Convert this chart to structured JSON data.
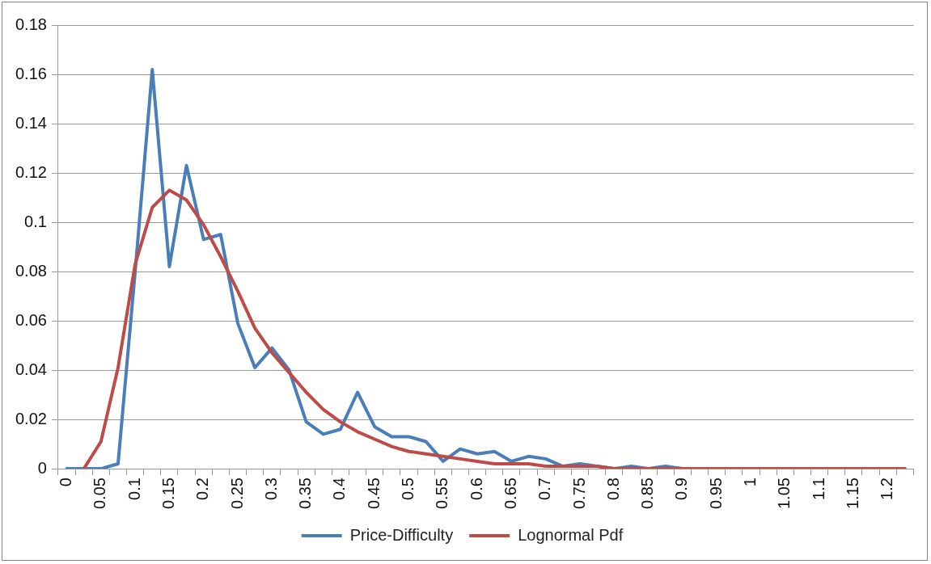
{
  "chart_data": {
    "type": "line",
    "categories": [
      "0",
      null,
      "0.05",
      null,
      "0.1",
      null,
      "0.15",
      null,
      "0.2",
      null,
      "0.25",
      null,
      "0.3",
      null,
      "0.35",
      null,
      "0.4",
      null,
      "0.45",
      null,
      "0.5",
      null,
      "0.55",
      null,
      "0.6",
      null,
      "0.65",
      null,
      "0.7",
      null,
      "0.75",
      null,
      "0.8",
      null,
      "0.85",
      null,
      "0.9",
      null,
      "0.95",
      null,
      "1",
      null,
      "1.05",
      null,
      "1.1",
      null,
      "1.15",
      null,
      "1.2",
      null
    ],
    "series": [
      {
        "name": "Price-Difficulty",
        "color": "#4a7ebb",
        "values": [
          0,
          0,
          0,
          0.002,
          0.08,
          0.162,
          0.082,
          0.123,
          0.093,
          0.095,
          0.059,
          0.041,
          0.049,
          0.04,
          0.019,
          0.014,
          0.016,
          0.031,
          0.017,
          0.013,
          0.013,
          0.011,
          0.003,
          0.008,
          0.006,
          0.007,
          0.003,
          0.005,
          0.004,
          0.001,
          0.002,
          0.001,
          0,
          0.001,
          0,
          0.001,
          0,
          null,
          null,
          null,
          null,
          null,
          null,
          null,
          null,
          null,
          null,
          null,
          null,
          null
        ]
      },
      {
        "name": "Lognormal Pdf",
        "color": "#be4b48",
        "values": [
          null,
          0,
          0.011,
          0.041,
          0.083,
          0.106,
          0.113,
          0.109,
          0.099,
          0.086,
          0.072,
          0.057,
          0.047,
          0.039,
          0.031,
          0.024,
          0.019,
          0.015,
          0.012,
          0.009,
          0.007,
          0.006,
          0.005,
          0.004,
          0.003,
          0.002,
          0.002,
          0.002,
          0.001,
          0.001,
          0.001,
          0.001,
          0,
          0,
          0,
          0,
          0,
          0,
          0,
          0,
          0,
          0,
          0,
          0,
          0,
          0,
          0,
          0,
          0,
          0
        ]
      }
    ],
    "ylim": [
      0,
      0.18
    ],
    "yticks": [
      0,
      0.02,
      0.04,
      0.06,
      0.08,
      0.1,
      0.12,
      0.14,
      0.16,
      0.18
    ],
    "grid": "y",
    "legend": "bottom",
    "marker": "none",
    "line_style": "solid"
  }
}
